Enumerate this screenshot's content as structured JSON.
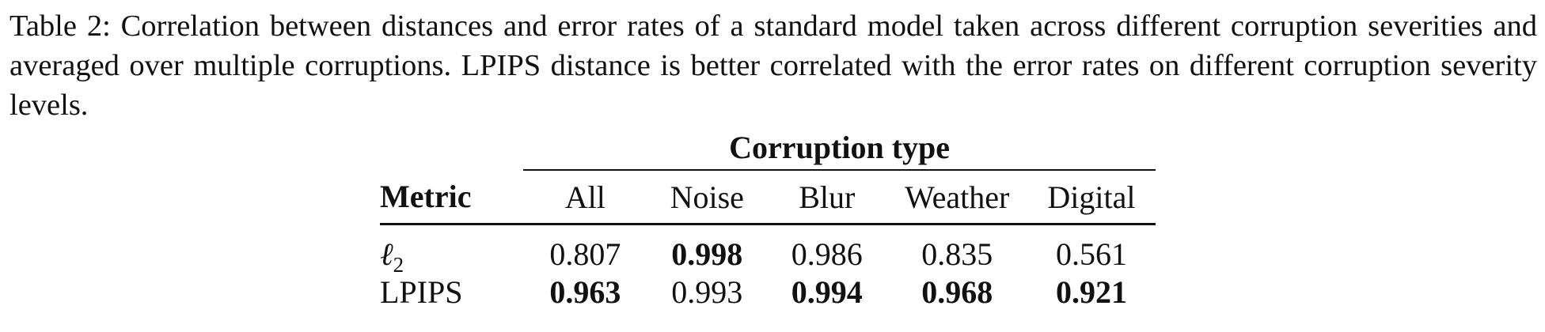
{
  "caption": "Table 2: Correlation between distances and error rates of a standard model taken across different corruption severities and averaged over multiple corruptions. LPIPS distance is better correlated with the error rates on different corruption severity levels.",
  "table": {
    "group_header": "Corruption type",
    "metric_header": "Metric",
    "columns": [
      "All",
      "Noise",
      "Blur",
      "Weather",
      "Digital"
    ],
    "rows": [
      {
        "label_main": "ℓ",
        "label_sub": "2",
        "values": [
          "0.807",
          "0.998",
          "0.986",
          "0.835",
          "0.561"
        ],
        "bold": [
          false,
          true,
          false,
          false,
          false
        ]
      },
      {
        "label": "LPIPS",
        "values": [
          "0.963",
          "0.993",
          "0.994",
          "0.968",
          "0.921"
        ],
        "bold": [
          true,
          false,
          true,
          true,
          true
        ]
      }
    ]
  }
}
